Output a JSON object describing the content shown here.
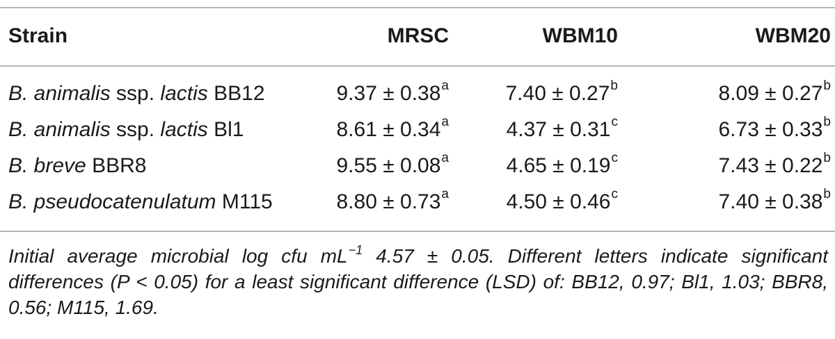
{
  "headers": {
    "strain": "Strain",
    "col1": "MRSC",
    "col2": "WBM10",
    "col3": "WBM20"
  },
  "rows": [
    {
      "genus": "B. animalis",
      "mid": " ssp. ",
      "species": "lactis",
      "code": " BB12",
      "v1": "9.37 ± 0.38",
      "s1": "a",
      "v2": "7.40 ± 0.27",
      "s2": "b",
      "v3": "8.09 ± 0.27",
      "s3": "b"
    },
    {
      "genus": "B. animalis",
      "mid": " ssp. ",
      "species": "lactis",
      "code": " Bl1",
      "v1": "8.61 ± 0.34",
      "s1": "a",
      "v2": "4.37 ± 0.31",
      "s2": "c",
      "v3": "6.73 ± 0.33",
      "s3": "b"
    },
    {
      "genus": "B. breve",
      "mid": "",
      "species": "",
      "code": " BBR8",
      "v1": "9.55 ± 0.08",
      "s1": "a",
      "v2": "4.65 ± 0.19",
      "s2": "c",
      "v3": "7.43 ± 0.22",
      "s3": "b"
    },
    {
      "genus": "B. pseudocatenulatum",
      "mid": "",
      "species": "",
      "code": " M115",
      "v1": "8.80 ± 0.73",
      "s1": "a",
      "v2": "4.50 ± 0.46",
      "s2": "c",
      "v3": "7.40 ± 0.38",
      "s3": "b"
    }
  ],
  "footnote": {
    "part1": "Initial average microbial log cfu mL",
    "exponent": "−1",
    "part2": " 4.57 ± 0.05. Different letters indicate significant differences (P < 0.05) for a least significant difference (LSD) of: BB12, 0.97; Bl1, 1.03; BBR8, 0.56; M115, 1.69."
  }
}
